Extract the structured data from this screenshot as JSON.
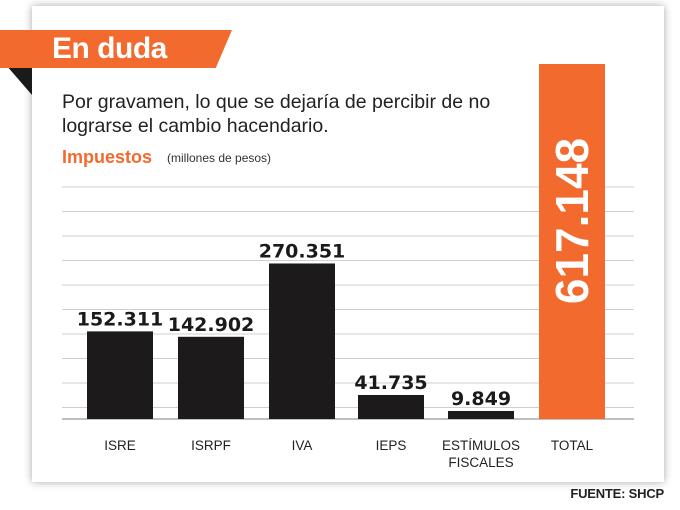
{
  "header": {
    "banner": "En duda",
    "subtitle": "Por gravamen, lo que se dejaría de percibir de no lograrse el cambio hacendario.",
    "tax_label": "Impuestos",
    "unit_label": "(millones de pesos)",
    "source": "FUENTE: SHCP"
  },
  "colors": {
    "accent": "#f26a2e",
    "bar": "#1c1a1a",
    "grid": "#cfcfcf"
  },
  "chart_data": {
    "type": "bar",
    "title": "Impuestos",
    "ylabel": "(millones de pesos)",
    "categories": [
      [
        "ISRE"
      ],
      [
        "ISRPF"
      ],
      [
        "IVA"
      ],
      [
        "IEPS"
      ],
      [
        "ESTÍMULOS",
        "FISCALES"
      ],
      [
        "TOTAL"
      ]
    ],
    "values": [
      152.311,
      142.902,
      270.351,
      41.735,
      9.849,
      617.148
    ],
    "value_labels": [
      "152.311",
      "142.902",
      "270.351",
      "41.735",
      "9.849",
      "617.148"
    ],
    "ylim": [
      0,
      617.148
    ],
    "grid": true,
    "highlight": "TOTAL"
  }
}
